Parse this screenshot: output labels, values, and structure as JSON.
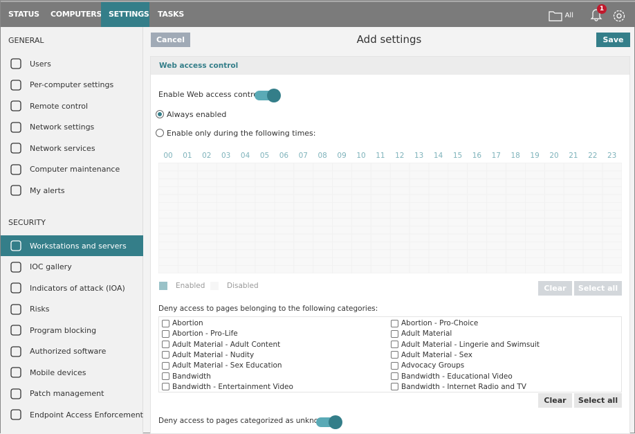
{
  "nav": {
    "tabs": [
      "STATUS",
      "COMPUTERS",
      "SETTINGS",
      "TASKS"
    ],
    "active": "SETTINGS",
    "folder_label": "All",
    "notifications": "1"
  },
  "sidebar": {
    "general_label": "GENERAL",
    "general": [
      {
        "label": "Users",
        "icon": "users-icon"
      },
      {
        "label": "Per-computer settings",
        "icon": "hierarchy-icon"
      },
      {
        "label": "Remote control",
        "icon": "remote-monitor-icon"
      },
      {
        "label": "Network settings",
        "icon": "globe-icon"
      },
      {
        "label": "Network services",
        "icon": "server-icon"
      },
      {
        "label": "Computer maintenance",
        "icon": "maintenance-icon"
      },
      {
        "label": "My alerts",
        "icon": "warning-icon"
      }
    ],
    "security_label": "SECURITY",
    "security": [
      {
        "label": "Workstations and servers",
        "icon": "monitor-icon",
        "active": true
      },
      {
        "label": "IOC gallery",
        "icon": "ioc-icon"
      },
      {
        "label": "Indicators of attack (IOA)",
        "icon": "ioa-icon"
      },
      {
        "label": "Risks",
        "icon": "risk-icon"
      },
      {
        "label": "Program blocking",
        "icon": "window-icon"
      },
      {
        "label": "Authorized software",
        "icon": "check-circle-icon"
      },
      {
        "label": "Mobile devices",
        "icon": "mobile-icon"
      },
      {
        "label": "Patch management",
        "icon": "patch-icon"
      },
      {
        "label": "Endpoint Access Enforcement",
        "icon": "network-tree-icon"
      }
    ]
  },
  "header": {
    "cancel": "Cancel",
    "title": "Add settings",
    "save": "Save"
  },
  "panel": {
    "title": "Web access control",
    "enable_label": "Enable Web access control",
    "enable_on": true,
    "radio_always": "Always enabled",
    "radio_times": "Enable only during the following times:",
    "selected": "always",
    "hours": [
      "00",
      "01",
      "02",
      "03",
      "04",
      "05",
      "06",
      "07",
      "08",
      "09",
      "10",
      "11",
      "12",
      "13",
      "14",
      "15",
      "16",
      "17",
      "18",
      "19",
      "20",
      "21",
      "22",
      "23"
    ],
    "legend_enabled": "Enabled",
    "legend_disabled": "Disabled",
    "clear": "Clear",
    "select_all": "Select all",
    "categories_label": "Deny access to pages belonging to the following categories:",
    "categories": [
      "Abortion",
      "Abortion - Pro-Choice",
      "Abortion - Pro-Life",
      "Adult Material",
      "Adult Material - Adult Content",
      "Adult Material - Lingerie and Swimsuit",
      "Adult Material - Nudity",
      "Adult Material - Sex",
      "Adult Material - Sex Education",
      "Advocacy Groups",
      "Bandwidth",
      "Bandwidth - Educational Video",
      "Bandwidth - Entertainment Video",
      "Bandwidth - Internet Radio and TV"
    ],
    "unknown_label": "Deny access to pages categorized as unknown",
    "unknown_on": true
  },
  "colors": {
    "accent": "#347e89",
    "topbar": "#7b7b7b",
    "badge": "#c0192c"
  }
}
